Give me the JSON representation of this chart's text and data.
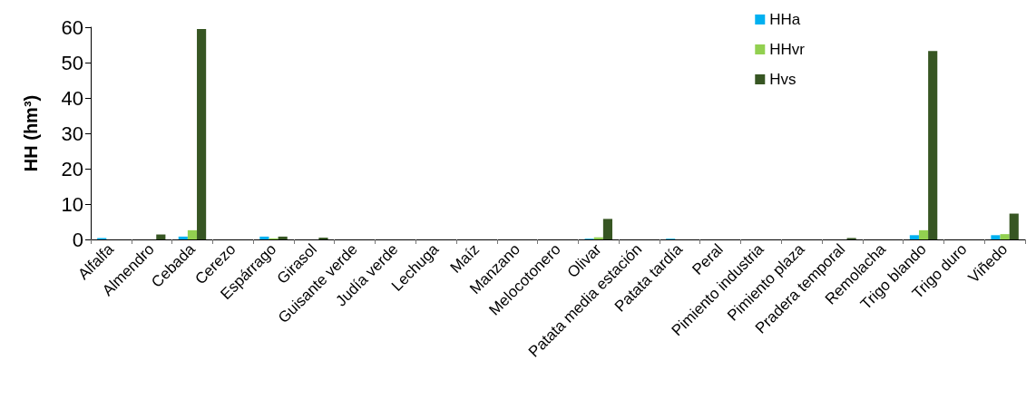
{
  "chart_data": {
    "type": "bar",
    "ylabel": "HH (hm³)",
    "categories": [
      "Alfalfa",
      "Almendro",
      "Cebada",
      "Cerezo",
      "Espárrago",
      "Girasol",
      "Guisante verde",
      "Judía verde",
      "Lechuga",
      "Maíz",
      "Manzano",
      "Melocotonero",
      "Olivar",
      "Patata media estación",
      "Patata tardía",
      "Peral",
      "Pimiento industria",
      "Pimiento plaza",
      "Pradera temporal",
      "Remolacha",
      "Trigo blando",
      "Trigo duro",
      "Viñedo"
    ],
    "series": [
      {
        "name": "HHa",
        "color": "#00b0f0",
        "values": [
          0.4,
          0,
          0.8,
          0,
          0.8,
          0,
          0,
          0,
          0,
          0,
          0,
          0,
          0.2,
          0,
          0.2,
          0,
          0,
          0,
          0,
          0,
          1.2,
          0,
          1.2
        ]
      },
      {
        "name": "HHvr",
        "color": "#92d050",
        "values": [
          0,
          0,
          2.6,
          0,
          0.3,
          0,
          0,
          0,
          0,
          0,
          0,
          0,
          0.6,
          0,
          0,
          0,
          0,
          0,
          0,
          0,
          2.6,
          0,
          1.5
        ]
      },
      {
        "name": "Hvs",
        "color": "#375623",
        "values": [
          0,
          1.4,
          59.5,
          0,
          0.8,
          0.5,
          0,
          0,
          0,
          0,
          0,
          0,
          5.8,
          0,
          0,
          0,
          0,
          0,
          0.4,
          0,
          53.3,
          0,
          7.3
        ]
      }
    ],
    "ylim": [
      0,
      60
    ],
    "yticks": [
      0,
      10,
      20,
      30,
      40,
      50,
      60
    ],
    "grid": false,
    "legend": "top right"
  }
}
